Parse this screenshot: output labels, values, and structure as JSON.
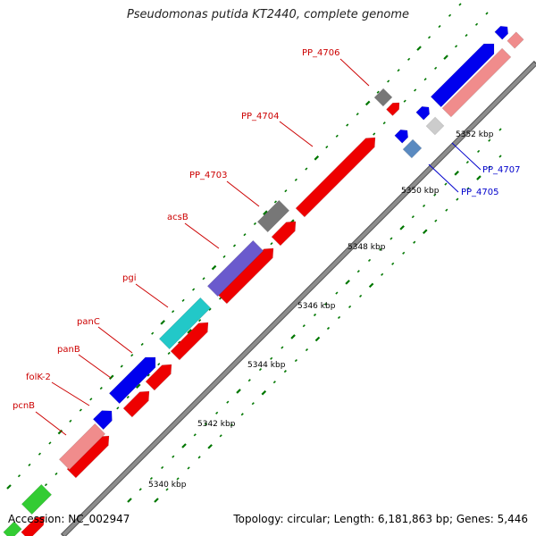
{
  "title": "Pseudomonas putida KT2440, complete genome",
  "footer": {
    "accession": "Accession: NC_002947",
    "topology": "Topology: circular; Length: 6,181,863 bp; Genes: 5,446"
  },
  "scale_labels": [
    "5340 kbp",
    "5342 kbp",
    "5344 kbp",
    "5346 kbp",
    "5348 kbp",
    "5350 kbp",
    "5352 kbp"
  ],
  "gene_labels": [
    {
      "name": "pcnB",
      "color": "#cc0000"
    },
    {
      "name": "folK-2",
      "color": "#cc0000"
    },
    {
      "name": "panB",
      "color": "#cc0000"
    },
    {
      "name": "panC",
      "color": "#cc0000"
    },
    {
      "name": "pgi",
      "color": "#cc0000"
    },
    {
      "name": "acsB",
      "color": "#cc0000"
    },
    {
      "name": "PP_4703",
      "color": "#cc0000"
    },
    {
      "name": "PP_4704",
      "color": "#cc0000"
    },
    {
      "name": "PP_4706",
      "color": "#cc0000"
    },
    {
      "name": "PP_4707",
      "color": "#0000cc"
    },
    {
      "name": "PP_4705",
      "color": "#0000cc"
    }
  ],
  "colors": {
    "backbone": "#8c8c8c",
    "red": "#ee0000",
    "pink": "#f08c8c",
    "blue": "#0000ee",
    "cyan": "#22c8c8",
    "purple": "#6a5acd",
    "gray": "#777777",
    "lightgray": "#cccccc",
    "steel": "#5a8ac0",
    "green": "#33cc33",
    "tick": "#007700"
  }
}
